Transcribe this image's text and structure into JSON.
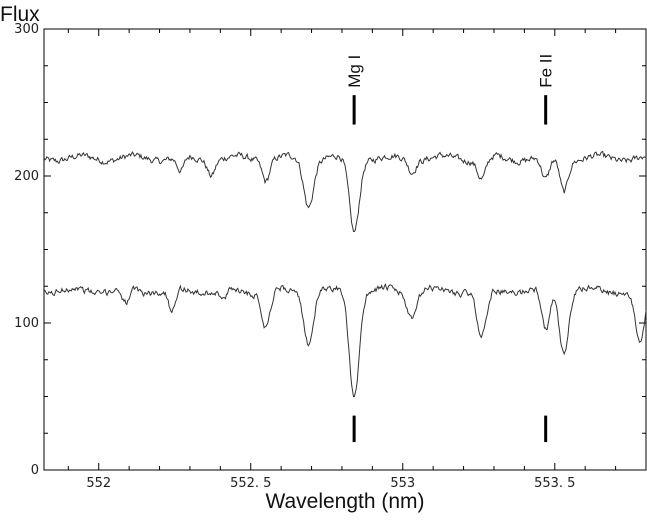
{
  "chart_data": {
    "type": "line",
    "title": "",
    "xlabel": "Wavelength (nm)",
    "ylabel": "Flux",
    "xlim": [
      551.82,
      553.8
    ],
    "ylim": [
      0,
      300
    ],
    "x_ticks": [
      "552",
      "552. 5",
      "553",
      "553. 5"
    ],
    "x_tick_values": [
      552,
      552.5,
      553,
      553.5
    ],
    "y_ticks": [
      "0",
      "100",
      "200",
      "300"
    ],
    "y_tick_values": [
      0,
      100,
      200,
      300
    ],
    "grid": false,
    "annotations": [
      {
        "label": "Mg I",
        "x": 552.84
      },
      {
        "label": "Fe II",
        "x": 553.47
      }
    ],
    "series": [
      {
        "baseline": 212,
        "noise": 4,
        "color": "#333333",
        "x": [
          551.82,
          552.0,
          552.2,
          552.4,
          552.55,
          552.63,
          552.69,
          552.75,
          552.84,
          552.92,
          553.03,
          553.15,
          553.26,
          553.35,
          553.47,
          553.53,
          553.65,
          553.8
        ],
        "y": [
          210,
          216,
          214,
          213,
          200,
          208,
          182,
          210,
          164,
          212,
          206,
          210,
          196,
          212,
          194,
          190,
          210,
          210
        ],
        "dips": [
          {
            "x": 552.27,
            "depth": 10,
            "width": 0.012
          },
          {
            "x": 552.37,
            "depth": 10,
            "width": 0.012
          },
          {
            "x": 552.55,
            "depth": 14,
            "width": 0.012
          },
          {
            "x": 552.69,
            "depth": 32,
            "width": 0.016
          },
          {
            "x": 552.84,
            "depth": 50,
            "width": 0.016
          },
          {
            "x": 553.03,
            "depth": 8,
            "width": 0.012
          },
          {
            "x": 553.26,
            "depth": 14,
            "width": 0.014
          },
          {
            "x": 553.47,
            "depth": 16,
            "width": 0.013
          },
          {
            "x": 553.53,
            "depth": 22,
            "width": 0.013
          }
        ]
      },
      {
        "baseline": 122,
        "noise": 4,
        "color": "#333333",
        "x": [
          551.82,
          552.0,
          552.2,
          552.4,
          552.55,
          552.63,
          552.69,
          552.75,
          552.84,
          552.92,
          553.03,
          553.15,
          553.26,
          553.35,
          553.47,
          553.53,
          553.65,
          553.8
        ],
        "y": [
          118,
          128,
          108,
          114,
          99,
          118,
          89,
          112,
          50,
          122,
          103,
          120,
          89,
          118,
          94,
          82,
          126,
          89
        ],
        "dips": [
          {
            "x": 552.09,
            "depth": 10,
            "width": 0.012
          },
          {
            "x": 552.24,
            "depth": 14,
            "width": 0.012
          },
          {
            "x": 552.41,
            "depth": 8,
            "width": 0.012
          },
          {
            "x": 552.55,
            "depth": 24,
            "width": 0.014
          },
          {
            "x": 552.69,
            "depth": 34,
            "width": 0.016
          },
          {
            "x": 552.84,
            "depth": 72,
            "width": 0.016
          },
          {
            "x": 553.03,
            "depth": 18,
            "width": 0.015
          },
          {
            "x": 553.26,
            "depth": 32,
            "width": 0.016
          },
          {
            "x": 553.47,
            "depth": 28,
            "width": 0.013
          },
          {
            "x": 553.53,
            "depth": 42,
            "width": 0.015
          },
          {
            "x": 553.78,
            "depth": 36,
            "width": 0.016
          }
        ]
      }
    ]
  }
}
